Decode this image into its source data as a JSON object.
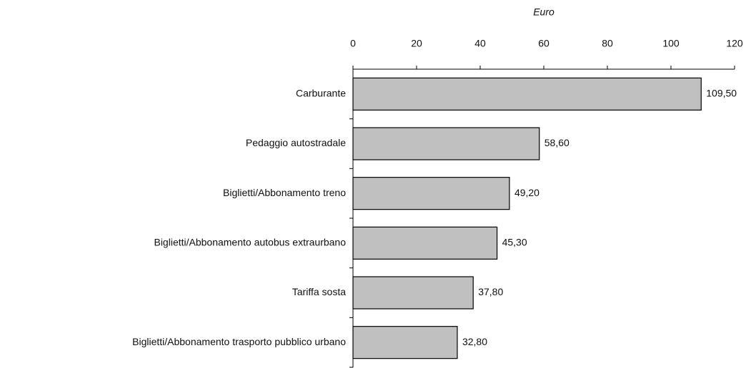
{
  "chart_data": {
    "type": "bar",
    "orientation": "horizontal",
    "xlabel": "Euro",
    "categories": [
      "Carburante",
      "Pedaggio autostradale",
      "Biglietti/Abbonamento treno",
      "Biglietti/Abbonamento autobus extraurbano",
      "Tariffa sosta",
      "Biglietti/Abbonamento trasporto pubblico urbano"
    ],
    "values": [
      109.5,
      58.6,
      49.2,
      45.3,
      37.8,
      32.8
    ],
    "value_labels": [
      "109,50",
      "58,60",
      "49,20",
      "45,30",
      "37,80",
      "32,80"
    ],
    "color": "#c0c0c0",
    "xlim": [
      0,
      120
    ],
    "xticks": [
      0,
      20,
      40,
      60,
      80,
      100,
      120
    ]
  }
}
